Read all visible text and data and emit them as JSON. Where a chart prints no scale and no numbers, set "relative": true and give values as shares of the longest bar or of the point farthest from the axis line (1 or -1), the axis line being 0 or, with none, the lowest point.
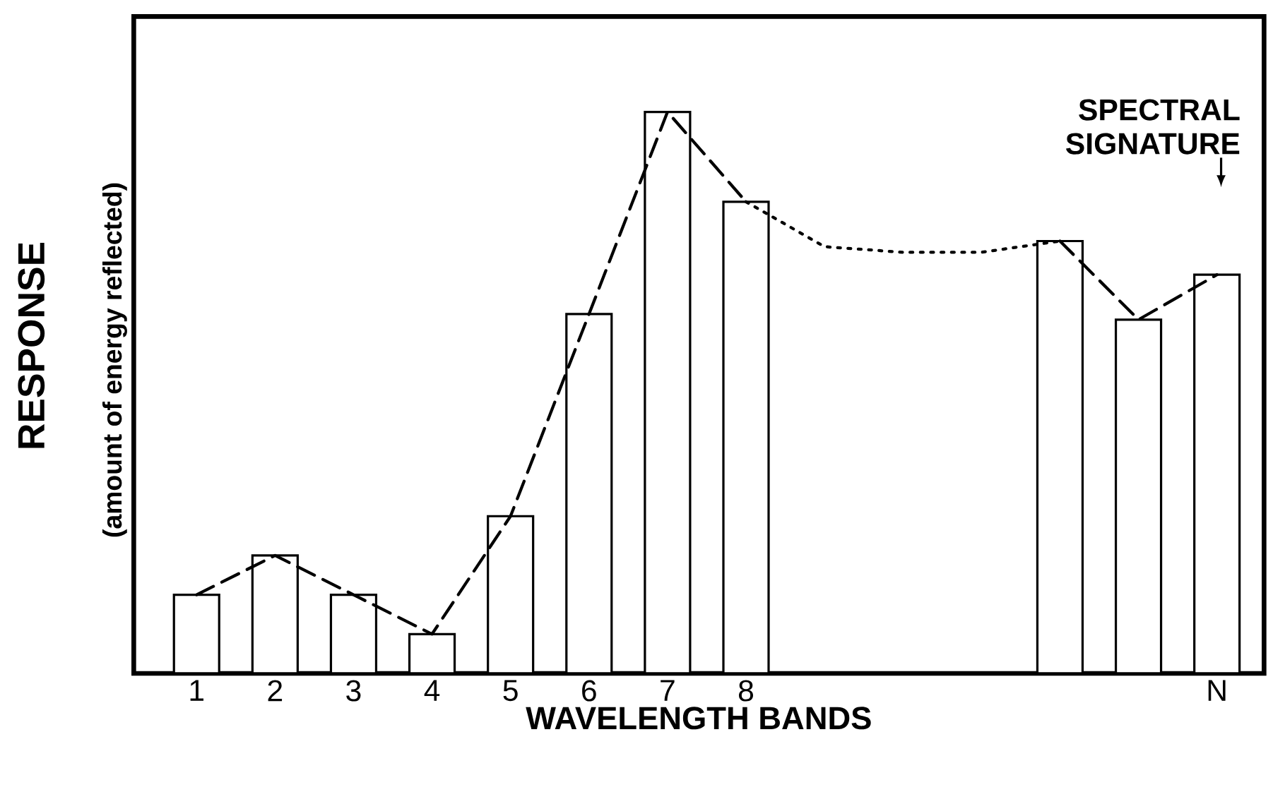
{
  "chart_data": {
    "type": "bar",
    "relative": true,
    "xlabel": "WAVELENGTH BANDS",
    "ylabel": "RESPONSE",
    "categories": [
      "1",
      "2",
      "3",
      "4",
      "5",
      "6",
      "7",
      "8",
      null,
      null,
      null,
      null,
      null,
      "N"
    ],
    "series": [
      {
        "color": "#ffffff",
        "values": [
          0.14,
          0.21,
          0.14,
          0.07,
          0.28,
          0.64,
          1,
          0.84,
          null,
          null,
          null,
          0.77,
          0.63,
          0.71
        ]
      },
      {
        "type": "line",
        "color": "#000000",
        "line_style": "dashed",
        "values": [
          0.14,
          0.21,
          0.14,
          0.07,
          0.28,
          0.64,
          1,
          0.84,
          null,
          null,
          null,
          0.77,
          0.63,
          0.71
        ]
      },
      {
        "type": "line",
        "color": "#000000",
        "line_style": "dotted",
        "values": [
          null,
          null,
          null,
          null,
          null,
          null,
          null,
          0.84,
          0.76,
          0.75,
          0.75,
          0.77,
          null,
          null
        ]
      }
    ],
    "annotations": [
      "(amount of energy reflected)",
      "SPECTRAL SIGNATURE"
    ],
    "grid": false
  }
}
